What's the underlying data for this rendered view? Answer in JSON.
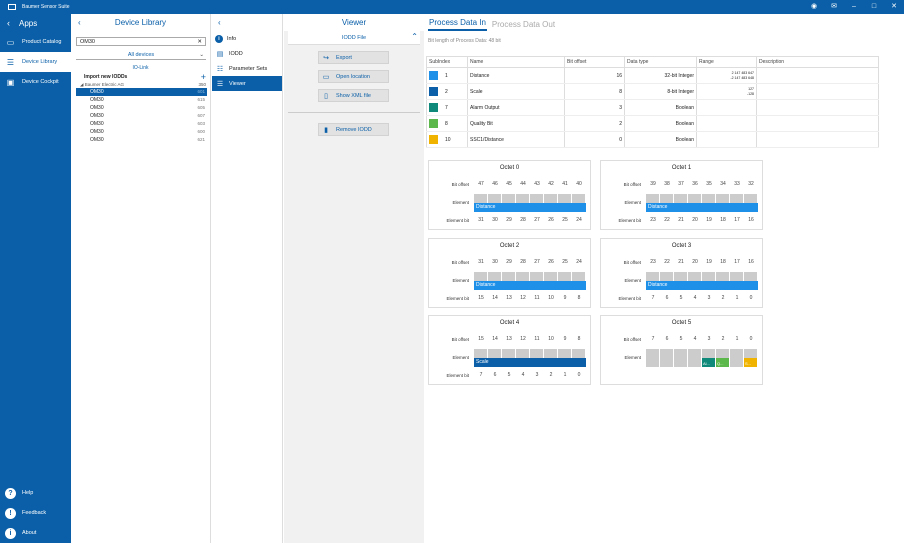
{
  "titlebar": {
    "title": "Baumer Sensor Suite"
  },
  "apps": {
    "header": "Apps",
    "items": [
      {
        "label": "Product Catalog",
        "icon": "book-icon"
      },
      {
        "label": "Device Library",
        "icon": "library-search-icon"
      },
      {
        "label": "Device Cockpit",
        "icon": "cockpit-icon"
      }
    ],
    "bottom": [
      {
        "label": "Help",
        "glyph": "?"
      },
      {
        "label": "Feedback",
        "glyph": "!"
      },
      {
        "label": "About",
        "glyph": "i"
      }
    ]
  },
  "library": {
    "title": "Device Library",
    "search_value": "OM30",
    "filter": "All devices",
    "section": "IO-Link",
    "import_label": "Import new IODDs",
    "vendor": "Baumer Electric AG",
    "vendor_count": "350",
    "devices": [
      {
        "name": "OM30",
        "num": "601"
      },
      {
        "name": "OM30",
        "num": "615"
      },
      {
        "name": "OM30",
        "num": "605"
      },
      {
        "name": "OM30",
        "num": "607"
      },
      {
        "name": "OM30",
        "num": "603"
      },
      {
        "name": "OM30",
        "num": "600"
      },
      {
        "name": "OM30",
        "num": "621"
      }
    ]
  },
  "nav": {
    "items": [
      {
        "label": "Info"
      },
      {
        "label": "IODD"
      },
      {
        "label": "Parameter Sets"
      },
      {
        "label": "Viewer"
      }
    ]
  },
  "viewer": {
    "title": "Viewer",
    "section": "IODD File",
    "buttons": {
      "export": "Export",
      "open_location": "Open location",
      "show_xml": "Show XML file",
      "remove": "Remove IODD"
    }
  },
  "main": {
    "tabs": [
      "Process Data In",
      "Process Data Out"
    ],
    "bit_length": "Bit length of Process Data: 48 bit",
    "columns": [
      "SubIndex",
      "Name",
      "Bit offset",
      "Data type",
      "Range",
      "Description"
    ],
    "rows": [
      {
        "color": "#1e90e8",
        "subindex": "1",
        "name": "Distance",
        "offset": "16",
        "type": "32-bit Integer",
        "range1": "2 147 483 647",
        "range2": "-2 147 483 648"
      },
      {
        "color": "#0a5fa8",
        "subindex": "2",
        "name": "Scale",
        "offset": "8",
        "type": "8-bit Integer",
        "range1": "127",
        "range2": "-128"
      },
      {
        "color": "#0f8a7a",
        "subindex": "7",
        "name": "Alarm Output",
        "offset": "3",
        "type": "Boolean",
        "range1": "",
        "range2": ""
      },
      {
        "color": "#5cb84a",
        "subindex": "8",
        "name": "Quality Bit",
        "offset": "2",
        "type": "Boolean",
        "range1": "",
        "range2": ""
      },
      {
        "color": "#f0b400",
        "subindex": "10",
        "name": "SSC1/Distance",
        "offset": "0",
        "type": "Boolean",
        "range1": "",
        "range2": ""
      }
    ],
    "labels": {
      "bit_offset": "Bit offset",
      "element": "Element",
      "element_bit": "Element bit"
    },
    "octets": [
      {
        "title": "Octet 0",
        "offsets": [
          "47",
          "46",
          "45",
          "44",
          "43",
          "42",
          "41",
          "40"
        ],
        "bits": [
          "31",
          "30",
          "29",
          "28",
          "27",
          "26",
          "25",
          "24"
        ],
        "element": "Distance",
        "color": "#1e90e8"
      },
      {
        "title": "Octet 1",
        "offsets": [
          "39",
          "38",
          "37",
          "36",
          "35",
          "34",
          "33",
          "32"
        ],
        "bits": [
          "23",
          "22",
          "21",
          "20",
          "19",
          "18",
          "17",
          "16"
        ],
        "element": "Distance",
        "color": "#1e90e8"
      },
      {
        "title": "Octet 2",
        "offsets": [
          "31",
          "30",
          "29",
          "28",
          "27",
          "26",
          "25",
          "24"
        ],
        "bits": [
          "15",
          "14",
          "13",
          "12",
          "11",
          "10",
          "9",
          "8"
        ],
        "element": "Distance",
        "color": "#1e90e8"
      },
      {
        "title": "Octet 3",
        "offsets": [
          "23",
          "22",
          "21",
          "20",
          "19",
          "18",
          "17",
          "16"
        ],
        "bits": [
          "7",
          "6",
          "5",
          "4",
          "3",
          "2",
          "1",
          "0"
        ],
        "element": "Distance",
        "color": "#1e90e8"
      },
      {
        "title": "Octet 4",
        "offsets": [
          "15",
          "14",
          "13",
          "12",
          "11",
          "10",
          "9",
          "8"
        ],
        "bits": [
          "7",
          "6",
          "5",
          "4",
          "3",
          "2",
          "1",
          "0"
        ],
        "element": "Scale",
        "color": "#0a5fa8"
      },
      {
        "title": "Octet 5",
        "offsets": [
          "7",
          "6",
          "5",
          "4",
          "3",
          "2",
          "1",
          "0"
        ],
        "bits": [],
        "element": "",
        "color": "",
        "cells": [
          {
            "label": "",
            "color": "#cccccc"
          },
          {
            "label": "",
            "color": "#cccccc"
          },
          {
            "label": "",
            "color": "#cccccc"
          },
          {
            "label": "",
            "color": "#cccccc"
          },
          {
            "label": "Al...",
            "color": "#0f8a7a"
          },
          {
            "label": "Q...",
            "color": "#5cb84a"
          },
          {
            "label": "",
            "color": "#cccccc"
          },
          {
            "label": "S...",
            "color": "#f0b400"
          }
        ]
      }
    ]
  }
}
